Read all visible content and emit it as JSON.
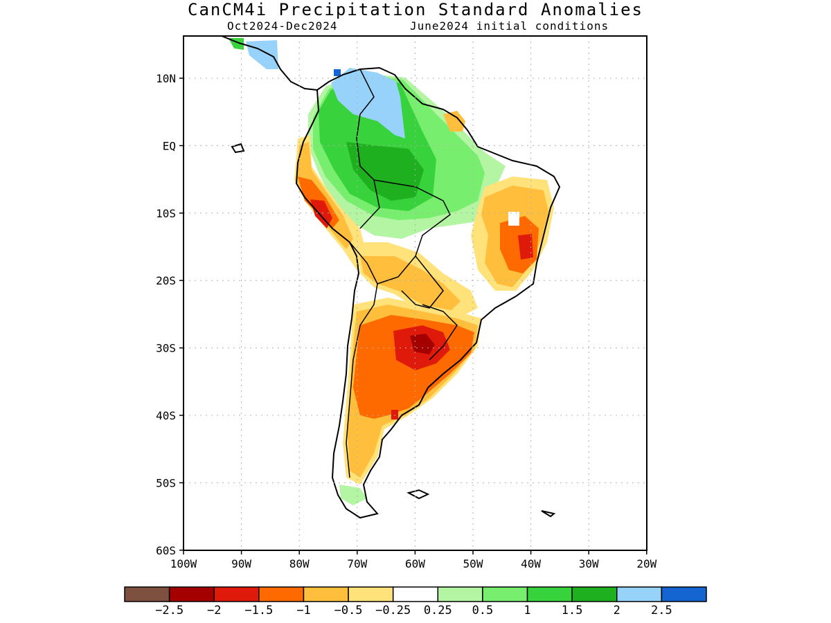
{
  "title": "CanCM4i Precipitation Standard Anomalies",
  "period": "Oct2024-Dec2024",
  "initial_conditions": "June2024 initial conditions",
  "lat_labels": [
    "10N",
    "EQ",
    "10S",
    "20S",
    "30S",
    "40S",
    "50S",
    "60S"
  ],
  "lon_labels": [
    "100W",
    "90W",
    "80W",
    "70W",
    "60W",
    "50W",
    "40W",
    "30W",
    "20W"
  ],
  "legend": {
    "colors": [
      "#7d5040",
      "#a50000",
      "#e01a0a",
      "#ff6a00",
      "#ffbe3c",
      "#ffe27a",
      "#ffffff",
      "#b4f5a3",
      "#78ee6e",
      "#37d23c",
      "#1fb01f",
      "#96d2fa",
      "#1464d2"
    ],
    "labels": [
      "-2.5",
      "-2",
      "-1.5",
      "-1",
      "-0.5",
      "-0.25",
      "0.25",
      "0.5",
      "1",
      "1.5",
      "2",
      "2.5"
    ]
  }
}
